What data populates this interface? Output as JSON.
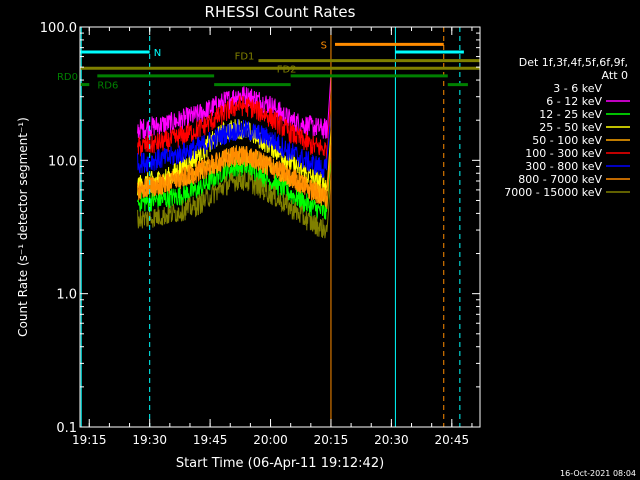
{
  "chart_data": {
    "type": "line",
    "title": "RHESSI Count Rates",
    "xlabel": "Start Time (06-Apr-11 19:12:42)",
    "ylabel": "Count Rate (s⁻¹ detector segment⁻¹)",
    "yscale": "log",
    "ylim": [
      0.1,
      100.0
    ],
    "xlim": [
      "19:12:42",
      "20:52:00"
    ],
    "xticks": [
      "19:15",
      "19:30",
      "19:45",
      "20:00",
      "20:15",
      "20:30",
      "20:45"
    ],
    "yticks": [
      "0.1",
      "1.0",
      "10.0",
      "100.0"
    ],
    "legend_header": [
      "Det 1f,3f,4f,5f,6f,9f,",
      "Att 0"
    ],
    "legend_position": "right",
    "footer": "16-Oct-2021 08:04",
    "data_span": {
      "start": "19:27",
      "end": "20:14",
      "end_spike": "20:15"
    },
    "series": [
      {
        "name": "3 - 6 keV",
        "color": "#000000",
        "x": [
          "19:27",
          "19:35",
          "19:42",
          "19:48",
          "19:52",
          "19:55",
          "20:00",
          "20:05",
          "20:10",
          "20:14"
        ],
        "y": [
          14,
          15,
          18,
          24,
          28,
          27,
          23,
          16,
          14,
          13
        ]
      },
      {
        "name": "6 - 12 keV",
        "color": "#ff00ff",
        "x": [
          "19:27",
          "19:35",
          "19:42",
          "19:48",
          "19:52",
          "19:55",
          "20:00",
          "20:05",
          "20:10",
          "20:14"
        ],
        "y": [
          17,
          19,
          22,
          27,
          31,
          30,
          26,
          20,
          18,
          17
        ]
      },
      {
        "name": "12 - 25 keV",
        "color": "#00ff00",
        "x": [
          "19:27",
          "19:35",
          "19:42",
          "19:48",
          "19:52",
          "19:55",
          "20:00",
          "20:05",
          "20:10",
          "20:14"
        ],
        "y": [
          4.8,
          5.2,
          6.0,
          8.2,
          9.0,
          8.5,
          7.0,
          5.6,
          4.5,
          4.0
        ]
      },
      {
        "name": "25 - 50 keV",
        "color": "#ffff00",
        "x": [
          "19:27",
          "19:35",
          "19:42",
          "19:48",
          "19:52",
          "19:55",
          "20:00",
          "20:05",
          "20:10",
          "20:14"
        ],
        "y": [
          6.5,
          7.5,
          11.0,
          16.0,
          17.5,
          16.0,
          13.0,
          9.5,
          7.5,
          6.5
        ]
      },
      {
        "name": "50 - 100 keV",
        "color": "#ffa500",
        "x": [
          "19:27",
          "19:35",
          "19:42",
          "19:48",
          "19:52",
          "19:55",
          "20:00",
          "20:05",
          "20:10",
          "20:14"
        ],
        "y": [
          6.0,
          6.8,
          8.2,
          10.0,
          11.0,
          10.5,
          9.0,
          7.5,
          6.0,
          5.2
        ]
      },
      {
        "name": "100 - 300 keV",
        "color": "#ff0000",
        "x": [
          "19:27",
          "19:35",
          "19:42",
          "19:48",
          "19:52",
          "19:55",
          "20:00",
          "20:05",
          "20:10",
          "20:14"
        ],
        "y": [
          12.5,
          14.0,
          17.0,
          22.0,
          26.0,
          25.0,
          21.0,
          16.0,
          13.0,
          12.0
        ]
      },
      {
        "name": "300 - 800 keV",
        "color": "#0000ff",
        "x": [
          "19:27",
          "19:35",
          "19:42",
          "19:48",
          "19:52",
          "19:55",
          "20:00",
          "20:05",
          "20:10",
          "20:14"
        ],
        "y": [
          9.5,
          10.5,
          12.5,
          15.5,
          17.0,
          16.5,
          14.5,
          11.5,
          9.5,
          8.5
        ]
      },
      {
        "name": "800 - 7000 keV",
        "color": "#ff8c00",
        "x": [
          "19:27",
          "19:35",
          "19:42",
          "19:48",
          "19:52",
          "19:55",
          "20:00",
          "20:05",
          "20:10",
          "20:14"
        ],
        "y": [
          6.0,
          6.8,
          8.2,
          10.0,
          11.0,
          10.5,
          9.0,
          7.5,
          6.0,
          5.2
        ]
      },
      {
        "name": "7000 - 15000 keV",
        "color": "#808000",
        "x": [
          "19:27",
          "19:35",
          "19:42",
          "19:48",
          "19:52",
          "19:55",
          "20:00",
          "20:05",
          "20:10",
          "20:14"
        ],
        "y": [
          3.6,
          3.9,
          4.6,
          6.3,
          7.2,
          6.8,
          5.6,
          4.4,
          3.4,
          3.0
        ]
      }
    ],
    "flags": [
      {
        "label": "N",
        "color": "#00ffff",
        "y_level": 65,
        "segments": [
          [
            "19:12:42",
            "19:30"
          ],
          [
            "20:31",
            "20:48"
          ]
        ]
      },
      {
        "label": "S",
        "color": "#ff8c00",
        "y_level": 74,
        "segments": [
          [
            "20:16",
            "20:43"
          ]
        ]
      },
      {
        "label": "FD1",
        "color": "#808000",
        "y_level": 56,
        "segments": [
          [
            "19:57",
            "20:52"
          ]
        ]
      },
      {
        "label": "FD2",
        "color": "#808000",
        "y_level": 49,
        "segments": [
          [
            "19:12:42",
            "20:52"
          ]
        ]
      },
      {
        "label": "RD0",
        "color": "#008000",
        "y_level": 43,
        "segments": [
          [
            "19:17",
            "19:46"
          ],
          [
            "20:05",
            "20:44"
          ]
        ]
      },
      {
        "label": "RD6",
        "color": "#008000",
        "y_level": 37,
        "segments": [
          [
            "19:12:42",
            "19:15"
          ],
          [
            "19:46",
            "20:05"
          ],
          [
            "20:44",
            "20:49"
          ]
        ]
      }
    ],
    "vlines": [
      {
        "time": "19:13",
        "color": "#00ffff",
        "style": "solid"
      },
      {
        "time": "19:30",
        "color": "#00ffff",
        "style": "dashed"
      },
      {
        "time": "20:15",
        "color": "#ff8c00",
        "style": "solid"
      },
      {
        "time": "20:31",
        "color": "#00ffff",
        "style": "solid"
      },
      {
        "time": "20:43",
        "color": "#ff8c00",
        "style": "dashed"
      },
      {
        "time": "20:47",
        "color": "#00ffff",
        "style": "dashed"
      }
    ]
  }
}
